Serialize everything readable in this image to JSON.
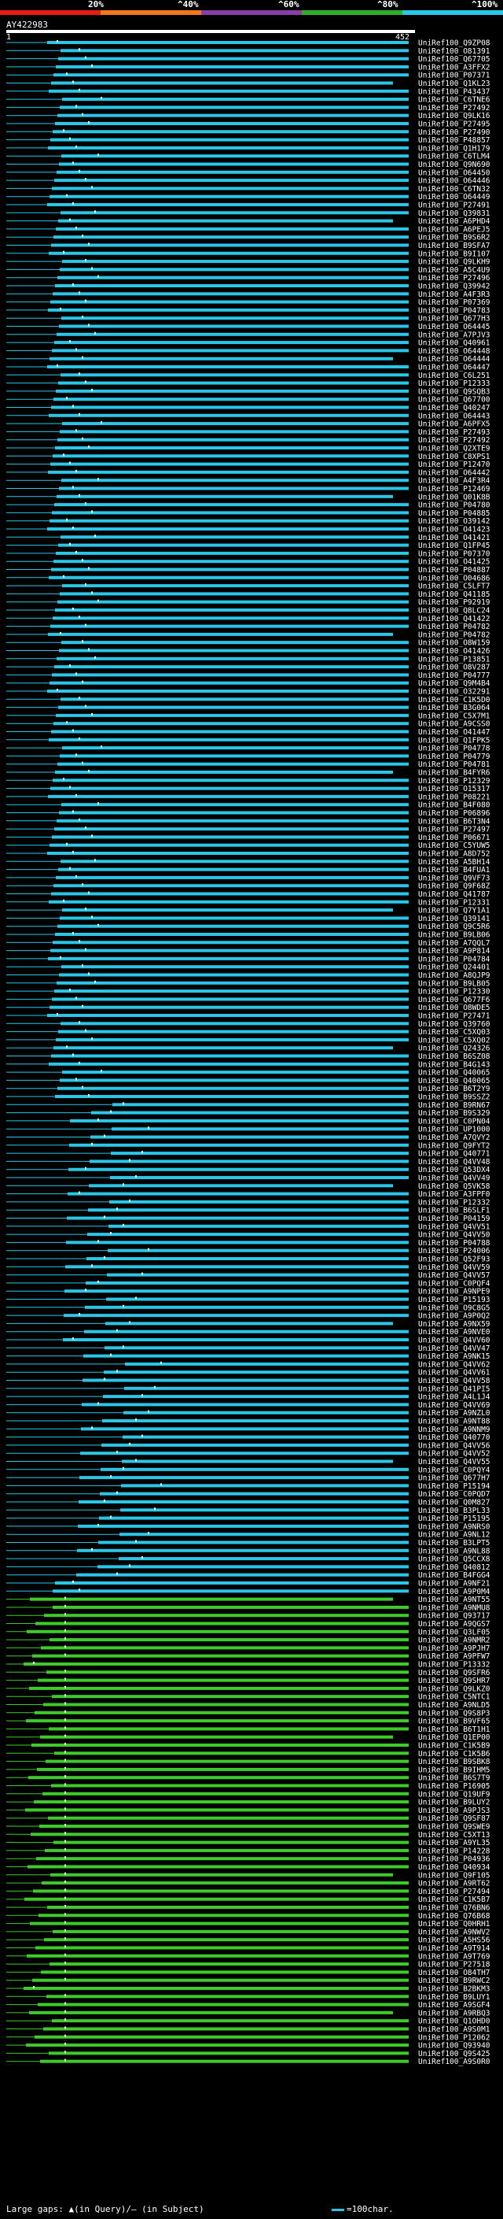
{
  "legend": {
    "labels": [
      "20%",
      "^40%",
      "^60%",
      "^80%",
      "^100%"
    ],
    "colors": [
      "#e81b1b",
      "#f07a1a",
      "#8a3fa8",
      "#2fae27",
      "#29c6e8"
    ]
  },
  "query": {
    "title": "AY422983",
    "start": "1",
    "end": "452"
  },
  "footer": {
    "large_gaps": "Large gaps: ▲(in Query)/— (in Subject)",
    "scale": "=100char."
  },
  "colors": {
    "cyan": "#29c6e8",
    "green": "#3ecb2a",
    "white": "#ffffff"
  },
  "hits": [
    "UniRef100_Q9ZP08",
    "UniRef100_O81391",
    "UniRef100_Q67705",
    "UniRef100_A3FFX2",
    "UniRef100_P07371",
    "UniRef100_Q1KL23",
    "UniRef100_P43437",
    "UniRef100_C6TNE6",
    "UniRef100_P27492",
    "UniRef100_Q9LK16",
    "UniRef100_P27495",
    "UniRef100_P27490",
    "UniRef100_P48857",
    "UniRef100_Q1H179",
    "UniRef100_C6TLM4",
    "UniRef100_Q9N690",
    "UniRef100_O64450",
    "UniRef100_O64446",
    "UniRef100_C6TN32",
    "UniRef100_O64449",
    "UniRef100_P27491",
    "UniRef100_Q39831",
    "UniRef100_A6PHD4",
    "UniRef100_A6PEJ5",
    "UniRef100_B9S6R2",
    "UniRef100_B9SFA7",
    "UniRef100_B9I107",
    "UniRef100_Q9LKH9",
    "UniRef100_A5C4U9",
    "UniRef100_P27496",
    "UniRef100_Q39942",
    "UniRef100_A4F3R3",
    "UniRef100_P07369",
    "UniRef100_P04783",
    "UniRef100_Q677H3",
    "UniRef100_O64445",
    "UniRef100_A7PJV3",
    "UniRef100_Q40961",
    "UniRef100_O64448",
    "UniRef100_O64444",
    "UniRef100_O64447",
    "UniRef100_C6L251",
    "UniRef100_P12333",
    "UniRef100_Q9SQB3",
    "UniRef100_Q67700",
    "UniRef100_Q40247",
    "UniRef100_O64443",
    "UniRef100_A6PFX5",
    "UniRef100_P27493",
    "UniRef100_P27492",
    "UniRef100_Q2XTE9",
    "UniRef100_C8XPS1",
    "UniRef100_P12470",
    "UniRef100_O64442",
    "UniRef100_A4F3R4",
    "UniRef100_P12469",
    "UniRef100_Q01K8B",
    "UniRef100_P04780",
    "UniRef100_P04885",
    "UniRef100_O39142",
    "UniRef100_O41423",
    "UniRef100_O41421",
    "UniRef100_Q1FP45",
    "UniRef100_P07370",
    "UniRef100_O41425",
    "UniRef100_P04887",
    "UniRef100_O04686",
    "UniRef100_C5LFT7",
    "UniRef100_Q41185",
    "UniRef100_P92919",
    "UniRef100_Q8LC24",
    "UniRef100_Q41422",
    "UniRef100_P04782",
    "UniRef100_P04782",
    "UniRef100_O8W159",
    "UniRef100_O41426",
    "UniRef100_P13851",
    "UniRef100_O8V287",
    "UniRef100_P04777",
    "UniRef100_Q9M4B4",
    "UniRef100_O32291",
    "UniRef100_C1K5D0",
    "UniRef100_B3G064",
    "UniRef100_C5X7M1",
    "UniRef100_A9CSS0",
    "UniRef100_O41447",
    "UniRef100_Q1FPK5",
    "UniRef100_P04778",
    "UniRef100_P04779",
    "UniRef100_P04781",
    "UniRef100_B4FYR6",
    "UniRef100_P12329",
    "UniRef100_O15317",
    "UniRef100_P08221",
    "UniRef100_B4F080",
    "UniRef100_P06896",
    "UniRef100_B6T3N4",
    "UniRef100_P27497",
    "UniRef100_P06671",
    "UniRef100_C5YUW5",
    "UniRef100_A8D752",
    "UniRef100_A5BH14",
    "UniRef100_B4FUA1",
    "UniRef100_Q9VF73",
    "UniRef100_Q9F68Z",
    "UniRef100_Q41787",
    "UniRef100_P12331",
    "UniRef100_Q7Y1A1",
    "UniRef100_Q39141",
    "UniRef100_Q9C5R6",
    "UniRef100_B9LB06",
    "UniRef100_A7QQL7",
    "UniRef100_A9P814",
    "UniRef100_P04784",
    "UniRef100_Q24401",
    "UniRef100_A8QJP9",
    "UniRef100_B9LB05",
    "UniRef100_P12330",
    "UniRef100_Q677F6",
    "UniRef100_O8WDE5",
    "UniRef100_P27471",
    "UniRef100_Q39760",
    "UniRef100_C5XQ03",
    "UniRef100_C5XQ02",
    "UniRef100_Q24326",
    "UniRef100_B6SZ08",
    "UniRef100_B4G143",
    "UniRef100_Q40065",
    "UniRef100_Q40065",
    "UniRef100_B6T2Y9",
    "UniRef100_B9SSZ2",
    "UniRef100_B9RN67",
    "UniRef100_B9S329",
    "UniRef100_C0PN04",
    "UniRef100_UP1000",
    "UniRef100_A7QVY2",
    "UniRef100_Q9FYT2",
    "UniRef100_Q40771",
    "UniRef100_Q4VV48",
    "UniRef100_Q53DX4",
    "UniRef100_Q4VV49",
    "UniRef100_Q5VK58",
    "UniRef100_A3FPF0",
    "UniRef100_P12332",
    "UniRef100_B6SLF1",
    "UniRef100_P04159",
    "UniRef100_Q4VV51",
    "UniRef100_Q4VV50",
    "UniRef100_P04788",
    "UniRef100_P24006",
    "UniRef100_Q52F93",
    "UniRef100_Q4VV59",
    "UniRef100_Q4VV57",
    "UniRef100_C0PQF4",
    "UniRef100_A9NPE9",
    "UniRef100_P15193",
    "UniRef100_O9C8G5",
    "UniRef100_A9P0Q2",
    "UniRef100_A9NX59",
    "UniRef100_A9NVE0",
    "UniRef100_Q4VV60",
    "UniRef100_Q4VV47",
    "UniRef100_A9NK15",
    "UniRef100_Q4VV62",
    "UniRef100_Q4VV61",
    "UniRef100_Q4VV58",
    "UniRef100_Q41PI5",
    "UniRef100_A4L1J4",
    "UniRef100_Q4VV69",
    "UniRef100_A9NZL0",
    "UniRef100_A9NT88",
    "UniRef100_A9NNM9",
    "UniRef100_Q40770",
    "UniRef100_Q4VV56",
    "UniRef100_Q4VV52",
    "UniRef100_Q4VV55",
    "UniRef100_C0PQY4",
    "UniRef100_Q677H7",
    "UniRef100_P15194",
    "UniRef100_C0PQD7",
    "UniRef100_Q0M827",
    "UniRef100_B3PL33",
    "UniRef100_P15195",
    "UniRef100_A9NRS0",
    "UniRef100_A9NL12",
    "UniRef100_B3LPT5",
    "UniRef100_A9NL88",
    "UniRef100_Q5CCX8",
    "UniRef100_Q40812",
    "UniRef100_B4FGG4",
    "UniRef100_A9NF21",
    "UniRef100_A9P0M4",
    "UniRef100_A9NT55",
    "UniRef100_A9NMU8",
    "UniRef100_Q93717",
    "UniRef100_A9QGS7",
    "UniRef100_Q3LF05",
    "UniRef100_A9NMR2",
    "UniRef100_A9PJH7",
    "UniRef100_A9PFW7",
    "UniRef100_P13332",
    "UniRef100_Q9SFR6",
    "UniRef100_Q9SHR7",
    "UniRef100_Q9LKZ0",
    "UniRef100_C5NTC1",
    "UniRef100_A9NLD5",
    "UniRef100_Q9S8P3",
    "UniRef100_B9VF65",
    "UniRef100_B6T1H1",
    "UniRef100_Q1EP00",
    "UniRef100_C1K5B9",
    "UniRef100_C1K5B6",
    "UniRef100_B9SBK8",
    "UniRef100_B9IHM5",
    "UniRef100_B6S7T9",
    "UniRef100_P16905",
    "UniRef100_Q19UF9",
    "UniRef100_B9LUY2",
    "UniRef100_A9PJS3",
    "UniRef100_Q9SF87",
    "UniRef100_Q9SWE9",
    "UniRef100_C5XT13",
    "UniRef100_A9YL35",
    "UniRef100_P14228",
    "UniRef100_P04936",
    "UniRef100_Q40934",
    "UniRef100_Q9F105",
    "UniRef100_A9RT62",
    "UniRef100_P27494",
    "UniRef100_C1K5B7",
    "UniRef100_Q76BN6",
    "UniRef100_Q76B68",
    "UniRef100_Q0HRH1",
    "UniRef100_A9NWV2",
    "UniRef100_A5HS56",
    "UniRef100_A9T914",
    "UniRef100_A9T769",
    "UniRef100_P27518",
    "UniRef100_O84TH7",
    "UniRef100_B9RWC2",
    "UniRef100_B2BKM3",
    "UniRef100_B9LUY1",
    "UniRef100_A9SGF4",
    "UniRef100_A9RBQ3",
    "UniRef100_Q1OHD0",
    "UniRef100_A9S0M1",
    "UniRef100_P12062",
    "UniRef100_Q93940",
    "UniRef100_Q9S425",
    "UniRef100_A9S0R0"
  ]
}
